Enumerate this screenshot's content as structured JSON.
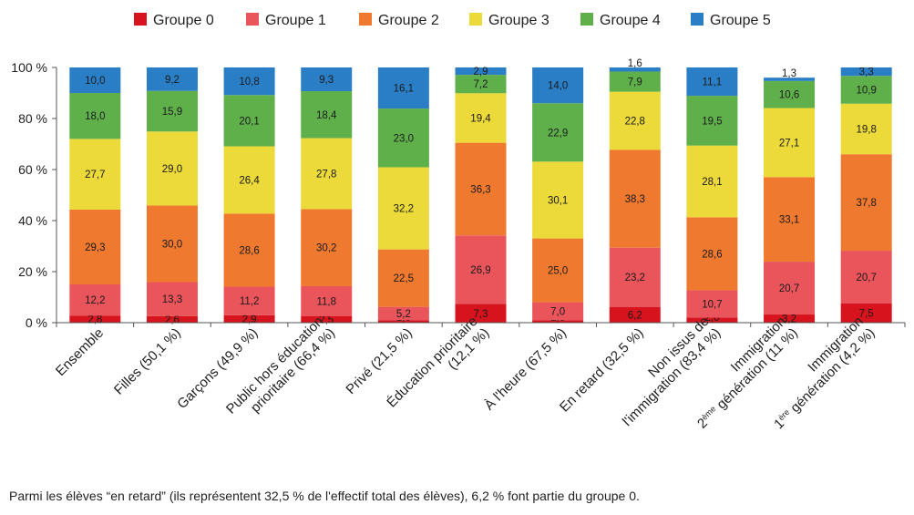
{
  "chart_data": {
    "type": "bar",
    "stacked": true,
    "colors": [
      "#d7141e",
      "#e9555a",
      "#ef7a2f",
      "#ecd93a",
      "#5fb04b",
      "#2a7ec6"
    ],
    "series": [
      {
        "name": "Groupe 0",
        "values": [
          2.8,
          2.6,
          2.9,
          2.5,
          1.0,
          7.3,
          1.0,
          6.2,
          2.0,
          3.2,
          7.5
        ]
      },
      {
        "name": "Groupe 1",
        "values": [
          12.2,
          13.3,
          11.2,
          11.8,
          5.2,
          26.9,
          7.0,
          23.2,
          10.7,
          20.7,
          20.7
        ]
      },
      {
        "name": "Groupe 2",
        "values": [
          29.3,
          30.0,
          28.6,
          30.2,
          22.5,
          36.3,
          25.0,
          38.3,
          28.6,
          33.1,
          37.8
        ]
      },
      {
        "name": "Groupe 3",
        "values": [
          27.7,
          29.0,
          26.4,
          27.8,
          32.2,
          19.4,
          30.1,
          22.8,
          28.1,
          27.1,
          19.8
        ]
      },
      {
        "name": "Groupe 4",
        "values": [
          18.0,
          15.9,
          20.1,
          18.4,
          23.0,
          7.2,
          22.9,
          7.9,
          19.5,
          10.6,
          10.9
        ]
      },
      {
        "name": "Groupe 5",
        "values": [
          10.0,
          9.2,
          10.8,
          9.3,
          16.1,
          2.9,
          14.0,
          1.6,
          11.1,
          1.3,
          3.3
        ]
      }
    ],
    "value_labels": [
      [
        "2,8",
        "2,6",
        "2,9",
        "2,5",
        "1,0",
        "7,3",
        "1,0",
        "6,2",
        "2,0",
        "3,2",
        "7,5"
      ],
      [
        "12,2",
        "13,3",
        "11,2",
        "11,8",
        "5,2",
        "26,9",
        "7,0",
        "23,2",
        "10,7",
        "20,7",
        "20,7"
      ],
      [
        "29,3",
        "30,0",
        "28,6",
        "30,2",
        "22,5",
        "36,3",
        "25,0",
        "38,3",
        "28,6",
        "33,1",
        "37,8"
      ],
      [
        "27,7",
        "29,0",
        "26,4",
        "27,8",
        "32,2",
        "19,4",
        "30,1",
        "22,8",
        "28,1",
        "27,1",
        "19,8"
      ],
      [
        "18,0",
        "15,9",
        "20,1",
        "18,4",
        "23,0",
        "7,2",
        "22,9",
        "7,9",
        "19,5",
        "10,6",
        "10,9"
      ],
      [
        "10,0",
        "9,2",
        "10,8",
        "9,3",
        "16,1",
        "2,9",
        "14,0",
        "1,6",
        "11,1",
        "1,3",
        "3,3"
      ]
    ],
    "categories": [
      [
        "Ensemble"
      ],
      [
        "Filles (50,1 %)"
      ],
      [
        "Garçons (49,9 %)"
      ],
      [
        "Public hors éducation",
        "prioritaire (66,4 %)"
      ],
      [
        "Privé (21,5 %)"
      ],
      [
        "Éducation prioritaire",
        "(12,1 %)"
      ],
      [
        "À l'heure (67,5 %)"
      ],
      [
        "En retard (32,5 %)"
      ],
      [
        "Non issus de",
        "l'immigration (83,4 %)"
      ],
      [
        "Immigration",
        "2ème génération (11 %)"
      ],
      [
        "Immigration",
        "1ère génération (4,2 %)"
      ]
    ],
    "ylim": [
      0,
      100
    ],
    "yticks": [
      "0 %",
      "20 %",
      "40 %",
      "60 %",
      "80 %",
      "100 %"
    ],
    "legend_position": "top",
    "grid": false
  },
  "note": "Parmi les élèves “en retard” (ils représentent 32,5 % de l'effectif total des élèves), 6,2 % font partie du groupe 0."
}
